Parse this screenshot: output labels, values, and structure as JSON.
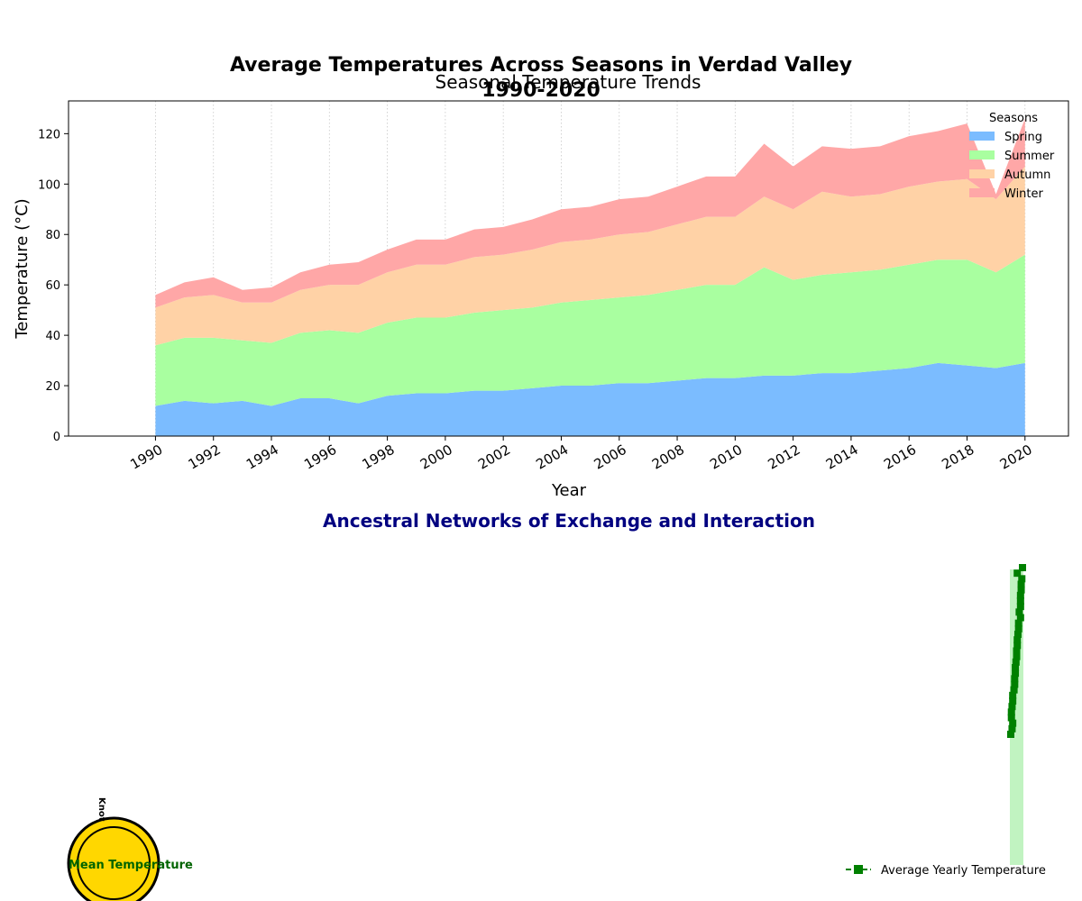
{
  "suptitle_line1": "Average Temperatures Across Seasons in Verdad Valley",
  "suptitle_line2": "1990-2020",
  "chart_data": [
    {
      "type": "area",
      "title": "Seasonal Temperature Trends",
      "xlabel": "Year",
      "ylabel": "Temperature (°C)",
      "stacked": true,
      "xlim": [
        1987,
        2021.5
      ],
      "ylim": [
        0,
        133
      ],
      "x_ticks": [
        1990,
        1992,
        1994,
        1996,
        1998,
        2000,
        2002,
        2004,
        2006,
        2008,
        2010,
        2012,
        2014,
        2016,
        2018,
        2020
      ],
      "y_ticks": [
        0,
        20,
        40,
        60,
        80,
        100,
        120
      ],
      "grid": "x-dotted",
      "legend": {
        "title": "Seasons",
        "placement": "top-right"
      },
      "x": [
        1990,
        1991,
        1992,
        1993,
        1994,
        1995,
        1996,
        1997,
        1998,
        1999,
        2000,
        2001,
        2002,
        2003,
        2004,
        2005,
        2006,
        2007,
        2008,
        2009,
        2010,
        2011,
        2012,
        2013,
        2014,
        2015,
        2016,
        2017,
        2018,
        2019,
        2020
      ],
      "series": [
        {
          "name": "Spring",
          "color": "#7bbcff",
          "values": [
            12,
            14,
            13,
            14,
            12,
            15,
            15,
            13,
            16,
            17,
            17,
            18,
            18,
            19,
            20,
            20,
            21,
            21,
            22,
            23,
            23,
            24,
            24,
            25,
            25,
            26,
            27,
            29,
            28,
            27,
            29
          ]
        },
        {
          "name": "Summer",
          "color": "#a9ffa0",
          "values": [
            24,
            25,
            26,
            24,
            25,
            26,
            27,
            28,
            29,
            30,
            30,
            31,
            32,
            32,
            33,
            34,
            34,
            35,
            36,
            37,
            37,
            43,
            38,
            39,
            40,
            40,
            41,
            41,
            42,
            38,
            43
          ]
        },
        {
          "name": "Autumn",
          "color": "#ffd2a6",
          "values": [
            15,
            16,
            17,
            15,
            16,
            17,
            18,
            19,
            20,
            21,
            21,
            22,
            22,
            23,
            24,
            24,
            25,
            25,
            26,
            27,
            27,
            28,
            28,
            33,
            30,
            30,
            31,
            31,
            32,
            29,
            35
          ]
        },
        {
          "name": "Winter",
          "color": "#ffa7a7",
          "values": [
            5,
            6,
            7,
            5,
            6,
            7,
            8,
            9,
            9,
            10,
            10,
            11,
            11,
            12,
            13,
            13,
            14,
            14,
            15,
            16,
            16,
            21,
            17,
            18,
            19,
            19,
            20,
            20,
            22,
            2,
            19
          ]
        }
      ]
    },
    {
      "type": "line",
      "title": "Ancestral Networks of Exchange and Interaction",
      "legend": {
        "entries": [
          "Average Yearly Temperature"
        ],
        "placement": "bottom-right"
      },
      "series": [
        {
          "name": "Average Yearly Temperature",
          "color": "#008000",
          "marker": "square",
          "line": "dashed",
          "values": [
            14,
            16,
            17,
            15,
            15,
            16,
            17,
            17,
            19,
            20,
            20,
            21,
            21,
            22,
            23,
            23,
            24,
            24,
            25,
            26,
            26,
            29,
            27,
            29,
            29,
            29,
            30,
            30,
            31,
            24,
            32
          ]
        }
      ]
    }
  ],
  "bottom_panel": {
    "legend_label": "Average Yearly Temperature",
    "badge_labels": [
      "Mean Temperature",
      "Knot"
    ],
    "colors": {
      "title": "#000080",
      "line": "#008000",
      "band": "#c1f3c1",
      "badge": "#ffd700"
    }
  }
}
